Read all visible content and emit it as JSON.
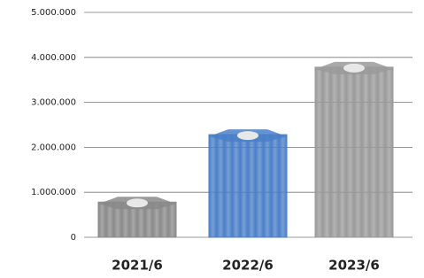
{
  "chart_data": {
    "type": "bar",
    "categories": [
      "2021/6",
      "2022/6",
      "2023/6"
    ],
    "values": [
      900000,
      2400000,
      3900000
    ],
    "colors": [
      "#8a8a8a",
      "#4a7fc8",
      "#9a9a9a"
    ],
    "ylim": [
      0,
      5000000
    ],
    "yticks": [
      0,
      {
        "value": 1000000,
        "label": "1.000.000"
      },
      {
        "value": 2000000,
        "label": "2.000.000"
      },
      {
        "value": 3000000,
        "label": "3.000.000"
      },
      {
        "value": 4000000,
        "label": "4.000.000"
      },
      {
        "value": 5000000,
        "label": "5.000.000"
      }
    ],
    "grid": true
  }
}
